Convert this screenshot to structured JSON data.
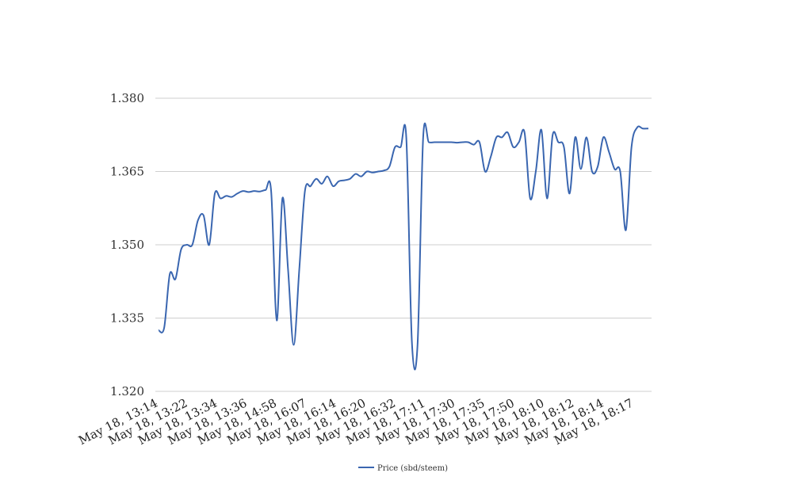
{
  "chart_data": {
    "type": "line",
    "title": "",
    "xlabel": "",
    "ylabel": "",
    "ylim": [
      1.32,
      1.38
    ],
    "yticks": [
      "1.320",
      "1.335",
      "1.350",
      "1.365",
      "1.380"
    ],
    "x_tick_labels": [
      "May 18, 13:14",
      "May 18, 13:22",
      "May 18, 13:34",
      "May 18, 13:36",
      "May 18, 14:58",
      "May 18, 16:07",
      "May 18, 16:14",
      "May 18, 16:20",
      "May 18, 16:32",
      "May 18, 17:11",
      "May 18, 17:30",
      "May 18, 17:35",
      "May 18, 17:50",
      "May 18, 18:10",
      "May 18, 18:12",
      "May 18, 18:14",
      "May 18, 18:17"
    ],
    "grid": true,
    "legend_position": "bottom-center",
    "series": [
      {
        "name": "Price (sbd/steem)",
        "color": "#3a66b0",
        "values": [
          1.3325,
          1.333,
          1.344,
          1.343,
          1.349,
          1.35,
          1.35,
          1.355,
          1.356,
          1.35,
          1.3605,
          1.3595,
          1.36,
          1.3598,
          1.3605,
          1.361,
          1.3608,
          1.361,
          1.3609,
          1.3612,
          1.361,
          1.3345,
          1.3595,
          1.345,
          1.3295,
          1.345,
          1.361,
          1.362,
          1.3635,
          1.3625,
          1.364,
          1.362,
          1.363,
          1.3632,
          1.3635,
          1.3645,
          1.364,
          1.365,
          1.3648,
          1.365,
          1.3652,
          1.366,
          1.37,
          1.37,
          1.372,
          1.33,
          1.3295,
          1.372,
          1.371,
          1.371,
          1.371,
          1.371,
          1.371,
          1.3709,
          1.371,
          1.371,
          1.3705,
          1.371,
          1.365,
          1.368,
          1.372,
          1.372,
          1.373,
          1.37,
          1.371,
          1.373,
          1.3595,
          1.365,
          1.3735,
          1.3595,
          1.3725,
          1.371,
          1.37,
          1.3605,
          1.372,
          1.3655,
          1.372,
          1.365,
          1.366,
          1.372,
          1.369,
          1.3655,
          1.365,
          1.353,
          1.37,
          1.374,
          1.3738,
          1.3738
        ]
      }
    ]
  }
}
